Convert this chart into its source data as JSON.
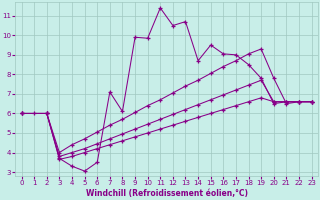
{
  "xlabel": "Windchill (Refroidissement éolien,°C)",
  "bg_color": "#c8eee8",
  "grid_color": "#a0c8c0",
  "line_color": "#880088",
  "marker": "+",
  "xlim": [
    -0.5,
    23.5
  ],
  "ylim": [
    2.8,
    11.7
  ],
  "xticks": [
    0,
    1,
    2,
    3,
    4,
    5,
    6,
    7,
    8,
    9,
    10,
    11,
    12,
    13,
    14,
    15,
    16,
    17,
    18,
    19,
    20,
    21,
    22,
    23
  ],
  "yticks": [
    3,
    4,
    5,
    6,
    7,
    8,
    9,
    10,
    11
  ],
  "series": [
    {
      "x": [
        0,
        1,
        2,
        3,
        4,
        5,
        6,
        7,
        8,
        9,
        10,
        11,
        12,
        13,
        14,
        15,
        16,
        17,
        18,
        19,
        20,
        21,
        22,
        23
      ],
      "y": [
        6.0,
        6.0,
        6.0,
        3.7,
        3.3,
        3.05,
        3.5,
        7.1,
        6.1,
        9.9,
        9.85,
        11.4,
        10.5,
        10.7,
        8.7,
        9.5,
        9.05,
        9.0,
        8.5,
        7.8,
        6.5,
        6.6,
        6.6,
        6.6
      ]
    },
    {
      "x": [
        0,
        2,
        3,
        4,
        5,
        6,
        7,
        8,
        9,
        10,
        11,
        12,
        13,
        14,
        15,
        16,
        17,
        18,
        19,
        20,
        21,
        22,
        23
      ],
      "y": [
        6.0,
        6.0,
        4.0,
        4.4,
        4.7,
        5.05,
        5.4,
        5.7,
        6.05,
        6.4,
        6.7,
        7.05,
        7.4,
        7.7,
        8.05,
        8.4,
        8.7,
        9.05,
        9.3,
        7.8,
        6.5,
        6.6,
        6.6
      ]
    },
    {
      "x": [
        0,
        2,
        3,
        4,
        5,
        6,
        7,
        8,
        9,
        10,
        11,
        12,
        13,
        14,
        15,
        16,
        17,
        18,
        19,
        20,
        21,
        22,
        23
      ],
      "y": [
        6.0,
        6.0,
        3.8,
        4.0,
        4.2,
        4.45,
        4.7,
        4.95,
        5.2,
        5.45,
        5.7,
        5.95,
        6.2,
        6.45,
        6.7,
        6.95,
        7.2,
        7.45,
        7.7,
        6.6,
        6.6,
        6.6,
        6.6
      ]
    },
    {
      "x": [
        0,
        2,
        3,
        4,
        5,
        6,
        7,
        8,
        9,
        10,
        11,
        12,
        13,
        14,
        15,
        16,
        17,
        18,
        19,
        20,
        21,
        22,
        23
      ],
      "y": [
        6.0,
        6.0,
        3.65,
        3.8,
        4.0,
        4.2,
        4.4,
        4.6,
        4.8,
        5.0,
        5.2,
        5.4,
        5.6,
        5.8,
        6.0,
        6.2,
        6.4,
        6.6,
        6.8,
        6.6,
        6.6,
        6.6,
        6.6
      ]
    }
  ]
}
